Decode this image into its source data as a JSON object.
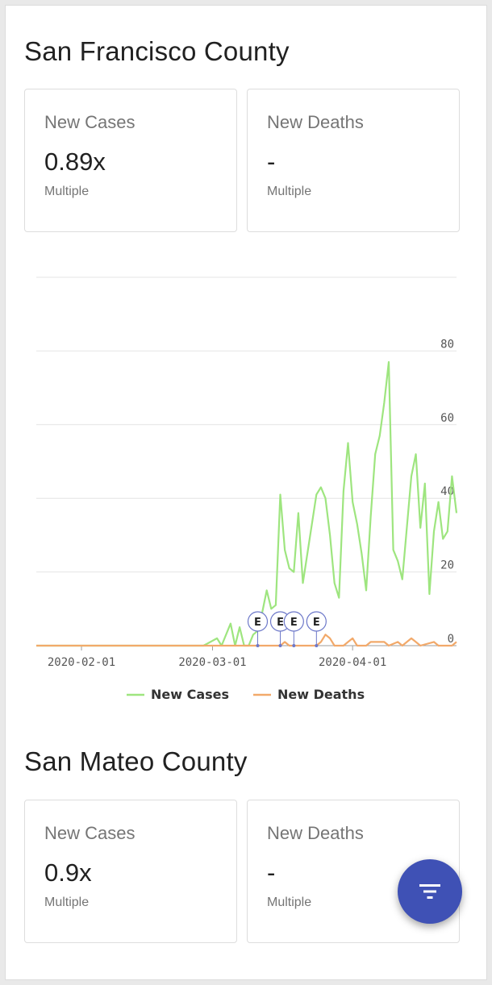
{
  "counties": [
    {
      "name": "San Francisco County",
      "cards": [
        {
          "label": "New Cases",
          "value": "0.89x",
          "caption": "Multiple"
        },
        {
          "label": "New Deaths",
          "value": "-",
          "caption": "Multiple"
        }
      ]
    },
    {
      "name": "San Mateo County",
      "cards": [
        {
          "label": "New Cases",
          "value": "0.9x",
          "caption": "Multiple"
        },
        {
          "label": "New Deaths",
          "value": "-",
          "caption": "Multiple"
        }
      ]
    }
  ],
  "fab": {
    "icon": "filter-icon",
    "color": "#3f51b5"
  },
  "chart_data": {
    "type": "line",
    "title": "",
    "xlabel": "",
    "ylabel": "",
    "x_tick_labels": [
      "2020-02-01",
      "2020-03-01",
      "2020-04-01"
    ],
    "y_tick_labels": [
      "0",
      "20",
      "40",
      "60",
      "80"
    ],
    "ylim": [
      0,
      100
    ],
    "grid": true,
    "legend_position": "bottom-center",
    "event_markers": [
      {
        "label": "E",
        "date": "2020-03-11"
      },
      {
        "label": "E",
        "date": "2020-03-16"
      },
      {
        "label": "E",
        "date": "2020-03-19"
      },
      {
        "label": "E",
        "date": "2020-03-24"
      }
    ],
    "series": [
      {
        "name": "New Cases",
        "color": "#9ee57f",
        "points": [
          [
            "2020-01-22",
            0
          ],
          [
            "2020-02-28",
            0
          ],
          [
            "2020-03-02",
            2
          ],
          [
            "2020-03-03",
            0
          ],
          [
            "2020-03-05",
            6
          ],
          [
            "2020-03-06",
            0
          ],
          [
            "2020-03-07",
            5
          ],
          [
            "2020-03-08",
            0
          ],
          [
            "2020-03-09",
            0
          ],
          [
            "2020-03-10",
            3
          ],
          [
            "2020-03-11",
            4
          ],
          [
            "2020-03-12",
            9
          ],
          [
            "2020-03-13",
            15
          ],
          [
            "2020-03-14",
            10
          ],
          [
            "2020-03-15",
            11
          ],
          [
            "2020-03-16",
            41
          ],
          [
            "2020-03-17",
            26
          ],
          [
            "2020-03-18",
            21
          ],
          [
            "2020-03-19",
            20
          ],
          [
            "2020-03-20",
            36
          ],
          [
            "2020-03-21",
            17
          ],
          [
            "2020-03-22",
            25
          ],
          [
            "2020-03-23",
            33
          ],
          [
            "2020-03-24",
            41
          ],
          [
            "2020-03-25",
            43
          ],
          [
            "2020-03-26",
            40
          ],
          [
            "2020-03-27",
            30
          ],
          [
            "2020-03-28",
            17
          ],
          [
            "2020-03-29",
            13
          ],
          [
            "2020-03-30",
            42
          ],
          [
            "2020-03-31",
            55
          ],
          [
            "2020-04-01",
            39
          ],
          [
            "2020-04-02",
            33
          ],
          [
            "2020-04-03",
            25
          ],
          [
            "2020-04-04",
            15
          ],
          [
            "2020-04-05",
            35
          ],
          [
            "2020-04-06",
            52
          ],
          [
            "2020-04-07",
            57
          ],
          [
            "2020-04-08",
            66
          ],
          [
            "2020-04-09",
            77
          ],
          [
            "2020-04-10",
            26
          ],
          [
            "2020-04-11",
            23
          ],
          [
            "2020-04-12",
            18
          ],
          [
            "2020-04-13",
            32
          ],
          [
            "2020-04-14",
            46
          ],
          [
            "2020-04-15",
            52
          ],
          [
            "2020-04-16",
            32
          ],
          [
            "2020-04-17",
            44
          ],
          [
            "2020-04-18",
            14
          ],
          [
            "2020-04-19",
            31
          ],
          [
            "2020-04-20",
            39
          ],
          [
            "2020-04-21",
            29
          ],
          [
            "2020-04-22",
            31
          ],
          [
            "2020-04-23",
            46
          ],
          [
            "2020-04-24",
            36
          ]
        ]
      },
      {
        "name": "New Deaths",
        "color": "#f2a96a",
        "points": [
          [
            "2020-01-22",
            0
          ],
          [
            "2020-03-16",
            0
          ],
          [
            "2020-03-17",
            1
          ],
          [
            "2020-03-18",
            0
          ],
          [
            "2020-03-24",
            0
          ],
          [
            "2020-03-25",
            1
          ],
          [
            "2020-03-26",
            3
          ],
          [
            "2020-03-27",
            2
          ],
          [
            "2020-03-28",
            0
          ],
          [
            "2020-03-30",
            0
          ],
          [
            "2020-03-31",
            1
          ],
          [
            "2020-04-01",
            2
          ],
          [
            "2020-04-02",
            0
          ],
          [
            "2020-04-04",
            0
          ],
          [
            "2020-04-05",
            1
          ],
          [
            "2020-04-08",
            1
          ],
          [
            "2020-04-09",
            0
          ],
          [
            "2020-04-11",
            1
          ],
          [
            "2020-04-12",
            0
          ],
          [
            "2020-04-14",
            2
          ],
          [
            "2020-04-15",
            1
          ],
          [
            "2020-04-16",
            0
          ],
          [
            "2020-04-19",
            1
          ],
          [
            "2020-04-20",
            0
          ],
          [
            "2020-04-23",
            0
          ],
          [
            "2020-04-24",
            1
          ]
        ]
      }
    ]
  }
}
